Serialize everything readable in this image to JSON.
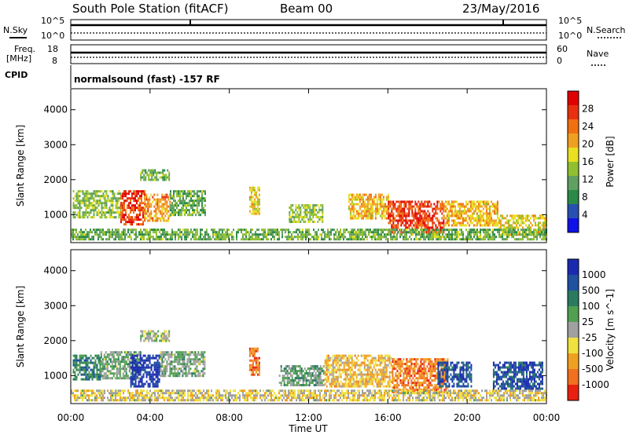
{
  "header": {
    "title": "South Pole Station (fitACF)",
    "beam": "Beam 00",
    "date": "23/May/2016"
  },
  "status_panels": {
    "n_sky_label": "N.Sky",
    "n_sky_ticks": [
      "10^5",
      "10^0"
    ],
    "n_search_label": "N.Search",
    "n_search_ticks": [
      "10^5",
      "10^0"
    ],
    "freq_label_line1": "Freq.",
    "freq_label_line2": "[MHz]",
    "freq_ticks": [
      "18",
      "8"
    ],
    "nave_label": "Nave",
    "nave_ticks": [
      "60",
      "0"
    ],
    "cpid_label": "CPID",
    "cpid_text": "normalsound (fast) -157 RF"
  },
  "axes": {
    "y_label": "Slant Range [km]",
    "y_ticks": [
      "1000",
      "2000",
      "3000",
      "4000"
    ],
    "y_range": [
      200,
      4600
    ],
    "x_label": "Time UT",
    "x_ticks": [
      "00:00",
      "04:00",
      "08:00",
      "12:00",
      "16:00",
      "20:00",
      "00:00"
    ],
    "x_range_hours": [
      0,
      24
    ]
  },
  "colorbars": {
    "power": {
      "label": "Power [dB]",
      "ticks": [
        "4",
        "8",
        "12",
        "16",
        "20",
        "24",
        "28"
      ],
      "colors": [
        "#1010e8",
        "#2850b0",
        "#2a8a48",
        "#60a060",
        "#90c030",
        "#e8e020",
        "#f0a020",
        "#f07010",
        "#e83010",
        "#e00000"
      ]
    },
    "velocity": {
      "label": "Velocity [m s^-1]",
      "ticks": [
        "1000",
        "500",
        "100",
        "25",
        "-25",
        "-100",
        "-500",
        "-1000"
      ],
      "colors": [
        "#1a2ab0",
        "#2050a0",
        "#2a7a60",
        "#50a050",
        "#a0a0a0",
        "#f0e040",
        "#f0a020",
        "#f07020",
        "#e82010"
      ]
    }
  },
  "chart_data": [
    {
      "type": "heatmap",
      "title": "Power",
      "xlabel": "Time UT",
      "ylabel": "Slant Range [km]",
      "x_range": [
        0,
        24
      ],
      "y_range": [
        200,
        4600
      ],
      "colorbar_label": "Power [dB]",
      "colorbar_range": [
        0,
        32
      ],
      "echo_regions": [
        {
          "t_start": 0.1,
          "t_end": 2.5,
          "r_min": 900,
          "r_max": 1700,
          "level": 14
        },
        {
          "t_start": 2.5,
          "t_end": 3.7,
          "r_min": 700,
          "r_max": 1700,
          "level": 27
        },
        {
          "t_start": 3.7,
          "t_end": 5.0,
          "r_min": 800,
          "r_max": 1600,
          "level": 22
        },
        {
          "t_start": 5.0,
          "t_end": 6.8,
          "r_min": 1000,
          "r_max": 1700,
          "level": 12
        },
        {
          "t_start": 3.5,
          "t_end": 5.0,
          "r_min": 2000,
          "r_max": 2300,
          "level": 12
        },
        {
          "t_start": 9.0,
          "t_end": 9.5,
          "r_min": 1000,
          "r_max": 1800,
          "level": 18
        },
        {
          "t_start": 11.0,
          "t_end": 12.7,
          "r_min": 800,
          "r_max": 1300,
          "level": 14
        },
        {
          "t_start": 14.0,
          "t_end": 16.0,
          "r_min": 900,
          "r_max": 1600,
          "level": 20
        },
        {
          "t_start": 16.0,
          "t_end": 18.8,
          "r_min": 500,
          "r_max": 1400,
          "level": 27
        },
        {
          "t_start": 18.8,
          "t_end": 21.5,
          "r_min": 700,
          "r_max": 1400,
          "level": 20
        },
        {
          "t_start": 21.5,
          "t_end": 24.0,
          "r_min": 400,
          "r_max": 1000,
          "level": 18
        },
        {
          "t_start": 0.0,
          "t_end": 24.0,
          "r_min": 300,
          "r_max": 600,
          "level": 12
        }
      ]
    },
    {
      "type": "heatmap",
      "title": "Velocity",
      "xlabel": "Time UT",
      "ylabel": "Slant Range [km]",
      "x_range": [
        0,
        24
      ],
      "y_range": [
        200,
        4600
      ],
      "colorbar_label": "Velocity [m s^-1]",
      "colorbar_range": [
        -1000,
        1000
      ],
      "echo_regions": [
        {
          "t_start": 0.1,
          "t_end": 1.5,
          "r_min": 900,
          "r_max": 1600,
          "level": 400
        },
        {
          "t_start": 1.5,
          "t_end": 3.5,
          "r_min": 900,
          "r_max": 1700,
          "level": 150
        },
        {
          "t_start": 3.0,
          "t_end": 4.5,
          "r_min": 700,
          "r_max": 1600,
          "level": 900
        },
        {
          "t_start": 4.5,
          "t_end": 6.8,
          "r_min": 1000,
          "r_max": 1700,
          "level": 150
        },
        {
          "t_start": 3.5,
          "t_end": 5.0,
          "r_min": 2000,
          "r_max": 2300,
          "level": 0
        },
        {
          "t_start": 9.0,
          "t_end": 9.5,
          "r_min": 1000,
          "r_max": 1800,
          "level": -600
        },
        {
          "t_start": 10.5,
          "t_end": 12.8,
          "r_min": 700,
          "r_max": 1300,
          "level": 200
        },
        {
          "t_start": 12.8,
          "t_end": 16.2,
          "r_min": 700,
          "r_max": 1600,
          "level": -300
        },
        {
          "t_start": 16.2,
          "t_end": 19.0,
          "r_min": 500,
          "r_max": 1500,
          "level": -600
        },
        {
          "t_start": 18.5,
          "t_end": 20.2,
          "r_min": 700,
          "r_max": 1400,
          "level": 700
        },
        {
          "t_start": 21.3,
          "t_end": 23.8,
          "r_min": 600,
          "r_max": 1400,
          "level": 700
        },
        {
          "t_start": 0.0,
          "t_end": 24.0,
          "r_min": 300,
          "r_max": 600,
          "level": -150
        }
      ]
    }
  ]
}
